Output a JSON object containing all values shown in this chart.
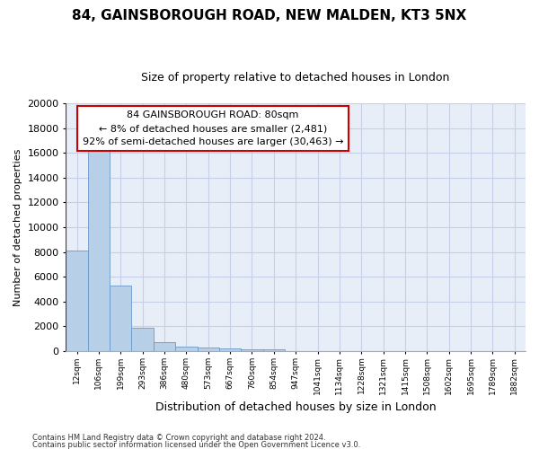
{
  "title1": "84, GAINSBOROUGH ROAD, NEW MALDEN, KT3 5NX",
  "title2": "Size of property relative to detached houses in London",
  "xlabel": "Distribution of detached houses by size in London",
  "ylabel": "Number of detached properties",
  "footer1": "Contains HM Land Registry data © Crown copyright and database right 2024.",
  "footer2": "Contains public sector information licensed under the Open Government Licence v3.0.",
  "annotation_title": "84 GAINSBOROUGH ROAD: 80sqm",
  "annotation_line1": "← 8% of detached houses are smaller (2,481)",
  "annotation_line2": "92% of semi-detached houses are larger (30,463) →",
  "bar_labels": [
    "12sqm",
    "106sqm",
    "199sqm",
    "293sqm",
    "386sqm",
    "480sqm",
    "573sqm",
    "667sqm",
    "760sqm",
    "854sqm",
    "947sqm",
    "1041sqm",
    "1134sqm",
    "1228sqm",
    "1321sqm",
    "1415sqm",
    "1508sqm",
    "1602sqm",
    "1695sqm",
    "1789sqm",
    "1882sqm"
  ],
  "bar_values": [
    8100,
    16600,
    5300,
    1850,
    750,
    370,
    270,
    200,
    175,
    120,
    0,
    0,
    0,
    0,
    0,
    0,
    0,
    0,
    0,
    0,
    0
  ],
  "bar_color": "#b8cfe8",
  "bar_edgecolor": "#6699cc",
  "vline_color": "#cc0000",
  "ylim": [
    0,
    20000
  ],
  "yticks": [
    0,
    2000,
    4000,
    6000,
    8000,
    10000,
    12000,
    14000,
    16000,
    18000,
    20000
  ],
  "annotation_box_color": "#cc0000",
  "bg_color": "#e8eef8",
  "grid_color": "#c5cfe8",
  "title_fontsize": 11,
  "subtitle_fontsize": 9,
  "ylabel_fontsize": 8,
  "xlabel_fontsize": 9
}
